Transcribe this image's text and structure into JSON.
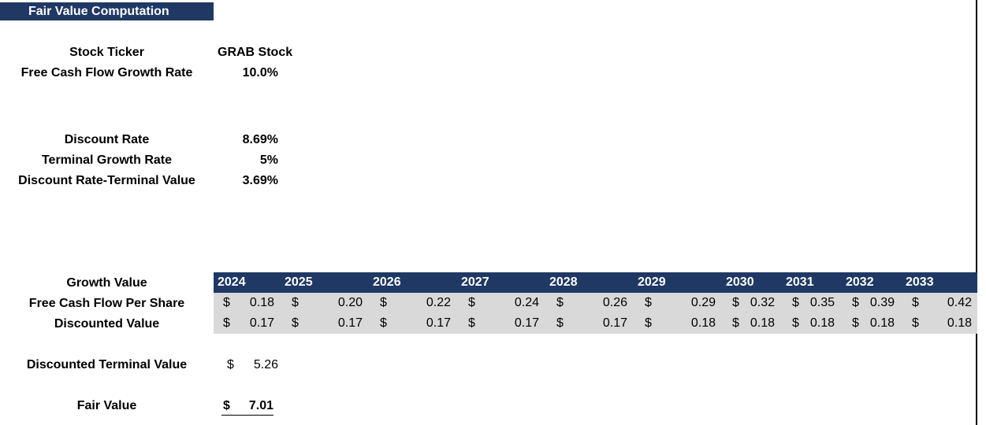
{
  "title": "Fair Value Computation",
  "inputs": {
    "ticker_label": "Stock Ticker",
    "ticker_value": "GRAB Stock",
    "fcf_growth_label": "Free Cash Flow Growth Rate",
    "fcf_growth_value": "10.0%",
    "discount_rate_label": "Discount Rate",
    "discount_rate_value": "8.69%",
    "terminal_growth_label": "Terminal Growth Rate",
    "terminal_growth_value": "5%",
    "dr_tv_label": "Discount Rate-Terminal Value",
    "dr_tv_value": "3.69%"
  },
  "table": {
    "row_labels": {
      "growth": "Growth Value",
      "fcf": "Free Cash Flow Per Share",
      "discounted": "Discounted Value"
    },
    "currency": "$",
    "years": [
      "2024",
      "2025",
      "2026",
      "2027",
      "2028",
      "2029",
      "2030",
      "2031",
      "2032",
      "2033"
    ],
    "fcf_per_share": [
      "0.18",
      "0.20",
      "0.22",
      "0.24",
      "0.26",
      "0.29",
      "0.32",
      "0.35",
      "0.39",
      "0.42"
    ],
    "discounted_values": [
      "0.17",
      "0.17",
      "0.17",
      "0.17",
      "0.17",
      "0.18",
      "0.18",
      "0.18",
      "0.18",
      "0.18"
    ]
  },
  "results": {
    "terminal_label": "Discounted Terminal Value",
    "terminal_currency": "$",
    "terminal_value": "5.26",
    "fair_value_label": "Fair Value",
    "fair_value_currency": "$",
    "fair_value": "7.01"
  },
  "colors": {
    "header_navy": "#1f3864",
    "row_grey": "#d9d9d9"
  }
}
